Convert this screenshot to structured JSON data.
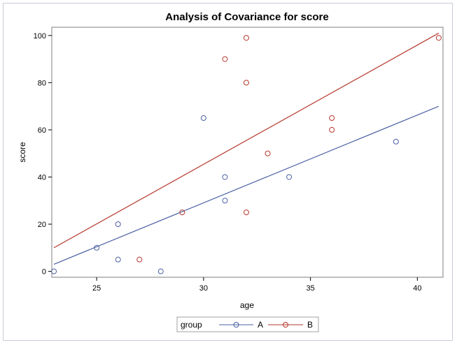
{
  "chart_data": {
    "type": "scatter",
    "title": "Analysis of Covariance for score",
    "xlabel": "age",
    "ylabel": "score",
    "xlim": [
      22.9,
      41.2
    ],
    "ylim": [
      -2.5,
      103.5
    ],
    "xticks": [
      25,
      30,
      35,
      40
    ],
    "yticks": [
      0,
      20,
      40,
      60,
      80,
      100
    ],
    "grid": false,
    "legend": {
      "title": "group",
      "position": "bottom-center"
    },
    "series": [
      {
        "name": "A",
        "color": "#4a5fa4",
        "marker": "circle",
        "points": [
          [
            23,
            0
          ],
          [
            25,
            10
          ],
          [
            26,
            20
          ],
          [
            26,
            5
          ],
          [
            28,
            0
          ],
          [
            30,
            65
          ],
          [
            31,
            40
          ],
          [
            31,
            30
          ],
          [
            34,
            40
          ],
          [
            39,
            55
          ]
        ],
        "fit_line": [
          [
            23,
            3
          ],
          [
            41,
            70
          ]
        ]
      },
      {
        "name": "B",
        "color": "#b5372c",
        "marker": "circle",
        "points": [
          [
            27,
            5
          ],
          [
            29,
            25
          ],
          [
            31,
            90
          ],
          [
            32,
            99
          ],
          [
            32,
            80
          ],
          [
            32,
            25
          ],
          [
            33,
            50
          ],
          [
            36,
            65
          ],
          [
            36,
            60
          ],
          [
            41,
            99
          ]
        ],
        "fit_line": [
          [
            23,
            10
          ],
          [
            41,
            101
          ]
        ]
      }
    ]
  }
}
